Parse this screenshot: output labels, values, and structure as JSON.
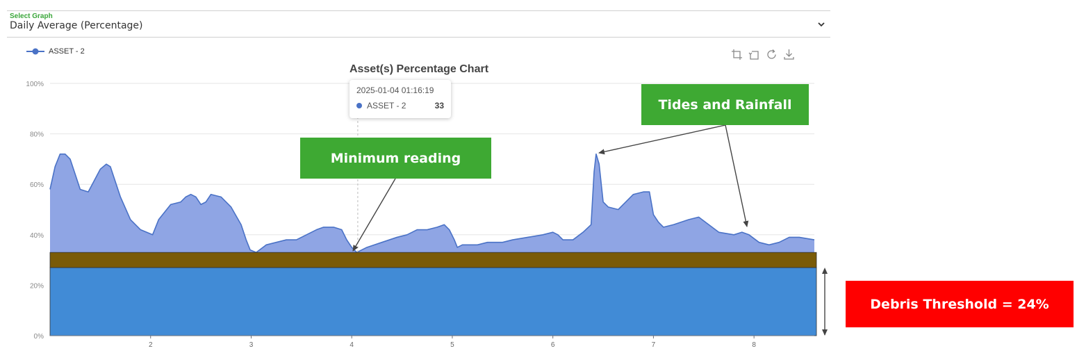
{
  "select": {
    "label": "Select Graph",
    "value": "Daily Average (Percentage)",
    "chevron_icon": "chevron-down-icon"
  },
  "toolbox": {
    "icons": [
      "crop-icon",
      "undo-crop-icon",
      "refresh-icon",
      "download-icon"
    ]
  },
  "legend": {
    "series_name": "ASSET - 2",
    "color": "#4a72c6"
  },
  "chart_data": {
    "type": "area",
    "title": "Asset(s) Percentage Chart",
    "xlabel": "",
    "ylabel": "",
    "xlim": [
      1.0,
      8.6
    ],
    "ylim": [
      0,
      100
    ],
    "y_ticks": [
      "0%",
      "20%",
      "40%",
      "60%",
      "80%",
      "100%"
    ],
    "y_tick_values": [
      0,
      20,
      40,
      60,
      80,
      100
    ],
    "x_ticks": [
      "2",
      "3",
      "4",
      "5",
      "6",
      "7",
      "8"
    ],
    "x_tick_values": [
      2,
      3,
      4,
      5,
      6,
      7,
      8
    ],
    "grid": "horizontal",
    "legend_position": "top-left",
    "series": [
      {
        "name": "ASSET - 2",
        "color": "#4a72c6",
        "fill": "#8fa5e4",
        "points": [
          [
            1.0,
            58
          ],
          [
            1.05,
            67
          ],
          [
            1.1,
            72
          ],
          [
            1.15,
            72
          ],
          [
            1.2,
            70
          ],
          [
            1.25,
            64
          ],
          [
            1.3,
            58
          ],
          [
            1.38,
            57
          ],
          [
            1.42,
            60
          ],
          [
            1.5,
            66
          ],
          [
            1.56,
            68
          ],
          [
            1.6,
            67
          ],
          [
            1.7,
            55
          ],
          [
            1.8,
            46
          ],
          [
            1.9,
            42
          ],
          [
            2.02,
            40
          ],
          [
            2.08,
            46
          ],
          [
            2.2,
            52
          ],
          [
            2.3,
            53
          ],
          [
            2.35,
            55
          ],
          [
            2.4,
            56
          ],
          [
            2.45,
            55
          ],
          [
            2.5,
            52
          ],
          [
            2.55,
            53
          ],
          [
            2.6,
            56
          ],
          [
            2.7,
            55
          ],
          [
            2.8,
            51
          ],
          [
            2.9,
            44
          ],
          [
            2.95,
            38
          ],
          [
            2.99,
            34
          ],
          [
            3.05,
            33
          ],
          [
            3.15,
            36
          ],
          [
            3.25,
            37
          ],
          [
            3.35,
            38
          ],
          [
            3.45,
            38
          ],
          [
            3.55,
            40
          ],
          [
            3.65,
            42
          ],
          [
            3.72,
            43
          ],
          [
            3.82,
            43
          ],
          [
            3.9,
            42
          ],
          [
            3.95,
            38
          ],
          [
            4.0,
            35
          ],
          [
            4.05,
            33
          ],
          [
            4.15,
            35
          ],
          [
            4.3,
            37
          ],
          [
            4.45,
            39
          ],
          [
            4.55,
            40
          ],
          [
            4.65,
            42
          ],
          [
            4.75,
            42
          ],
          [
            4.85,
            43
          ],
          [
            4.92,
            44
          ],
          [
            4.97,
            42
          ],
          [
            5.02,
            38
          ],
          [
            5.05,
            35
          ],
          [
            5.1,
            36
          ],
          [
            5.25,
            36
          ],
          [
            5.35,
            37
          ],
          [
            5.5,
            37
          ],
          [
            5.6,
            38
          ],
          [
            5.75,
            39
          ],
          [
            5.9,
            40
          ],
          [
            6.0,
            41
          ],
          [
            6.05,
            40
          ],
          [
            6.1,
            38
          ],
          [
            6.2,
            38
          ],
          [
            6.3,
            41
          ],
          [
            6.38,
            44
          ],
          [
            6.41,
            65
          ],
          [
            6.43,
            72
          ],
          [
            6.46,
            68
          ],
          [
            6.5,
            53
          ],
          [
            6.55,
            51
          ],
          [
            6.65,
            50
          ],
          [
            6.7,
            52
          ],
          [
            6.8,
            56
          ],
          [
            6.9,
            57
          ],
          [
            6.96,
            57
          ],
          [
            7.0,
            48
          ],
          [
            7.05,
            45
          ],
          [
            7.1,
            43
          ],
          [
            7.2,
            44
          ],
          [
            7.35,
            46
          ],
          [
            7.45,
            47
          ],
          [
            7.55,
            44
          ],
          [
            7.65,
            41
          ],
          [
            7.8,
            40
          ],
          [
            7.88,
            41
          ],
          [
            7.95,
            40
          ],
          [
            8.05,
            37
          ],
          [
            8.15,
            36
          ],
          [
            8.25,
            37
          ],
          [
            8.35,
            39
          ],
          [
            8.45,
            39
          ],
          [
            8.6,
            38
          ]
        ]
      }
    ],
    "bands": [
      {
        "from": 0,
        "to": 27,
        "color": "#418bd6"
      },
      {
        "from": 27,
        "to": 33,
        "color": "#7a5b08"
      }
    ],
    "crosshair_x": 4.06
  },
  "tooltip": {
    "time": "2025-01-04 01:16:19",
    "series": "ASSET - 2",
    "value": "33"
  },
  "annotations": {
    "minimum_reading": "Minimum reading",
    "tides_rainfall": "Tides and Rainfall",
    "debris_threshold": "Debris Threshold = 24%"
  }
}
